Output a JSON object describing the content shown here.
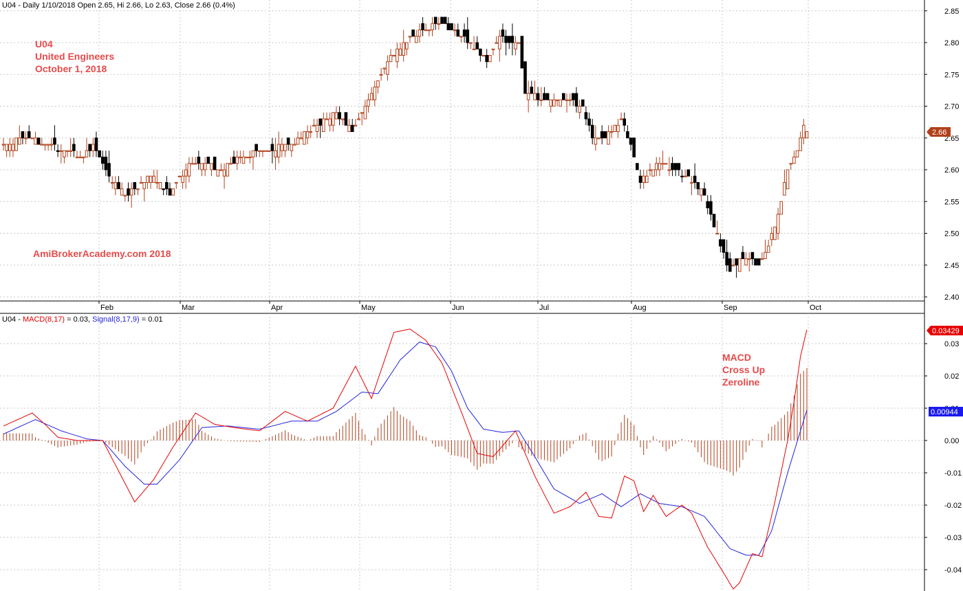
{
  "header": {
    "price_info": "U04 - Daily 1/10/2018 Open 2.65, Hi 2.66, Lo 2.63, Close 2.66 (0.4%)",
    "macd_prefix": "U04 - ",
    "macd_label": "MACD(8,17)",
    "macd_value": " = 0.03, ",
    "signal_label": "Signal(8,17,9)",
    "signal_value": " = 0.01"
  },
  "annotations": {
    "ticker": "U04",
    "company": "United Engineers",
    "date": "October 1, 2018",
    "watermark": "AmiBrokerAcademy.com  2018",
    "macd_note_1": "MACD",
    "macd_note_2": "Cross Up",
    "macd_note_3": "Zeroline"
  },
  "badges": {
    "last_price": "2.66",
    "macd_last": "0.03429",
    "signal_last": "0.00944"
  },
  "colors": {
    "up_candle": "#b0401a",
    "down_candle": "#000000",
    "macd_line": "#e60000",
    "signal_line": "#2222dd",
    "histogram": "#b0401a",
    "annotation": "#e84a4a",
    "grid": "#c8c8c8"
  },
  "chart_data": [
    {
      "type": "candlestick",
      "title": "U04 - Daily",
      "x_labels": [
        "Feb",
        "Mar",
        "Apr",
        "May",
        "Jun",
        "Jul",
        "Aug",
        "Sep",
        "Oct"
      ],
      "y_ticks": [
        "2.40",
        "2.45",
        "2.50",
        "2.55",
        "2.60",
        "2.65",
        "2.70",
        "2.75",
        "2.80",
        "2.85"
      ],
      "ylim": [
        2.385,
        2.865
      ],
      "grid": true,
      "close_anchors": [
        [
          0,
          2.64
        ],
        [
          8,
          2.65
        ],
        [
          13,
          2.64
        ],
        [
          20,
          2.63
        ],
        [
          25,
          2.62
        ],
        [
          28,
          2.64
        ],
        [
          33,
          2.59
        ],
        [
          38,
          2.56
        ],
        [
          42,
          2.57
        ],
        [
          46,
          2.59
        ],
        [
          52,
          2.56
        ],
        [
          58,
          2.61
        ],
        [
          62,
          2.61
        ],
        [
          68,
          2.6
        ],
        [
          74,
          2.62
        ],
        [
          82,
          2.63
        ],
        [
          90,
          2.64
        ],
        [
          98,
          2.67
        ],
        [
          104,
          2.69
        ],
        [
          109,
          2.66
        ],
        [
          115,
          2.72
        ],
        [
          120,
          2.77
        ],
        [
          125,
          2.8
        ],
        [
          131,
          2.82
        ],
        [
          137,
          2.83
        ],
        [
          143,
          2.81
        ],
        [
          147,
          2.79
        ],
        [
          151,
          2.77
        ],
        [
          155,
          2.81
        ],
        [
          158,
          2.8
        ],
        [
          161,
          2.8
        ],
        [
          163,
          2.72
        ],
        [
          170,
          2.71
        ],
        [
          176,
          2.71
        ],
        [
          181,
          2.7
        ],
        [
          184,
          2.65
        ],
        [
          188,
          2.65
        ],
        [
          193,
          2.68
        ],
        [
          196,
          2.64
        ],
        [
          199,
          2.58
        ],
        [
          204,
          2.61
        ],
        [
          210,
          2.6
        ],
        [
          216,
          2.58
        ],
        [
          219,
          2.56
        ],
        [
          222,
          2.51
        ],
        [
          227,
          2.44
        ],
        [
          230,
          2.46
        ],
        [
          233,
          2.46
        ],
        [
          236,
          2.45
        ],
        [
          239,
          2.48
        ],
        [
          242,
          2.53
        ],
        [
          245,
          2.6
        ],
        [
          248,
          2.63
        ],
        [
          250,
          2.67
        ],
        [
          251,
          2.66
        ]
      ]
    },
    {
      "type": "line",
      "title": "MACD(8,17), Signal(8,17,9)",
      "y_ticks": [
        "0.03",
        "0.02",
        "0.01",
        "0.00",
        "-0.01",
        "-0.02",
        "-0.03",
        "-0.04"
      ],
      "ylim": [
        -0.0465,
        0.0365
      ],
      "grid": true,
      "series": [
        {
          "name": "MACD(8,17)",
          "anchors": [
            [
              0,
              0.0045
            ],
            [
              9,
              0.0085
            ],
            [
              13,
              0.005
            ],
            [
              17,
              0.001
            ],
            [
              23,
              0.0
            ],
            [
              31,
              0.0
            ],
            [
              41,
              -0.019
            ],
            [
              47,
              -0.012
            ],
            [
              53,
              -0.002
            ],
            [
              60,
              0.0085
            ],
            [
              66,
              0.005
            ],
            [
              72,
              0.004
            ],
            [
              80,
              0.003
            ],
            [
              88,
              0.009
            ],
            [
              95,
              0.006
            ],
            [
              103,
              0.01
            ],
            [
              110,
              0.023
            ],
            [
              115,
              0.013
            ],
            [
              122,
              0.0335
            ],
            [
              127,
              0.0345
            ],
            [
              132,
              0.031
            ],
            [
              137,
              0.024
            ],
            [
              143,
              0.009
            ],
            [
              148,
              -0.004
            ],
            [
              153,
              -0.005
            ],
            [
              160,
              0.003
            ],
            [
              166,
              -0.011
            ],
            [
              172,
              -0.0225
            ],
            [
              177,
              -0.0205
            ],
            [
              182,
              -0.016
            ],
            [
              186,
              -0.0235
            ],
            [
              190,
              -0.024
            ],
            [
              194,
              -0.011
            ],
            [
              197,
              -0.0125
            ],
            [
              200,
              -0.022
            ],
            [
              203,
              -0.017
            ],
            [
              207,
              -0.0235
            ],
            [
              212,
              -0.02
            ],
            [
              215,
              -0.0225
            ],
            [
              220,
              -0.033
            ],
            [
              225,
              -0.041
            ],
            [
              228,
              -0.046
            ],
            [
              230,
              -0.044
            ],
            [
              234,
              -0.035
            ],
            [
              237,
              -0.036
            ],
            [
              241,
              -0.019
            ],
            [
              245,
              0.0
            ],
            [
              247,
              0.012
            ],
            [
              249,
              0.026
            ],
            [
              251,
              0.0343
            ]
          ]
        },
        {
          "name": "Signal(8,17,9)",
          "anchors": [
            [
              0,
              0.002
            ],
            [
              10,
              0.0065
            ],
            [
              18,
              0.003
            ],
            [
              26,
              0.0005
            ],
            [
              31,
              0.0
            ],
            [
              38,
              -0.008
            ],
            [
              44,
              -0.0135
            ],
            [
              48,
              -0.0135
            ],
            [
              55,
              -0.006
            ],
            [
              62,
              0.004
            ],
            [
              70,
              0.0045
            ],
            [
              80,
              0.0035
            ],
            [
              90,
              0.006
            ],
            [
              98,
              0.006
            ],
            [
              104,
              0.009
            ],
            [
              112,
              0.015
            ],
            [
              117,
              0.0145
            ],
            [
              124,
              0.025
            ],
            [
              130,
              0.0305
            ],
            [
              135,
              0.029
            ],
            [
              140,
              0.0215
            ],
            [
              145,
              0.01
            ],
            [
              150,
              0.0035
            ],
            [
              156,
              0.0025
            ],
            [
              161,
              0.003
            ],
            [
              166,
              -0.005
            ],
            [
              172,
              -0.015
            ],
            [
              180,
              -0.0195
            ],
            [
              187,
              -0.0165
            ],
            [
              193,
              -0.0205
            ],
            [
              199,
              -0.0165
            ],
            [
              205,
              -0.0195
            ],
            [
              212,
              -0.0205
            ],
            [
              219,
              -0.0235
            ],
            [
              227,
              -0.0335
            ],
            [
              232,
              -0.0355
            ],
            [
              236,
              -0.0355
            ],
            [
              240,
              -0.028
            ],
            [
              245,
              -0.01
            ],
            [
              249,
              0.003
            ],
            [
              251,
              0.0094
            ]
          ]
        },
        {
          "name": "Histogram",
          "derived": "MACD - Signal"
        }
      ]
    }
  ]
}
